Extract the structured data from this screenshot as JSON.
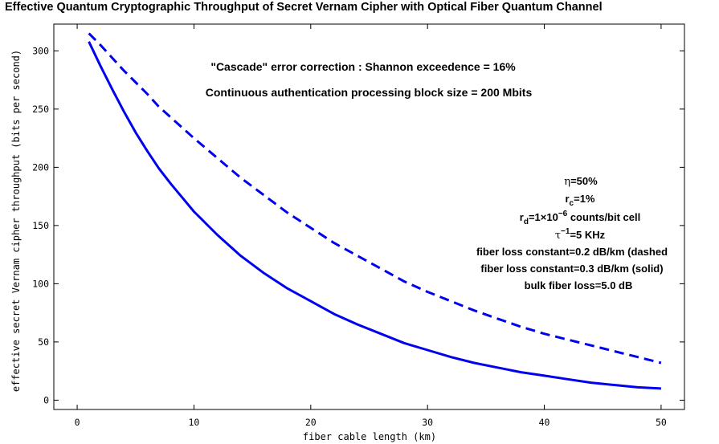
{
  "chart_data": {
    "type": "line",
    "title": "Effective Quantum Cryptographic Throughput of Secret Vernam Cipher with Optical Fiber Quantum Channel",
    "xlabel": "fiber cable length (km)",
    "ylabel": "effective secret Vernam cipher throughput (bits per second)",
    "xlim": [
      -2,
      52
    ],
    "ylim": [
      -8,
      323
    ],
    "x_ticks": [
      0,
      10,
      20,
      30,
      40,
      50
    ],
    "y_ticks": [
      0,
      50,
      100,
      150,
      200,
      250,
      300
    ],
    "grid": false,
    "series": [
      {
        "style": "dashed",
        "color": "#0000ee",
        "x": [
          1,
          2,
          3,
          4,
          5,
          6,
          7,
          8,
          9,
          10,
          12,
          14,
          16,
          18,
          20,
          22,
          24,
          26,
          28,
          30,
          32,
          34,
          36,
          38,
          40,
          42,
          44,
          46,
          48,
          50
        ],
        "y": [
          315,
          305,
          294,
          283,
          273,
          263,
          252,
          243,
          234,
          225,
          208,
          191,
          176,
          161,
          148,
          135,
          124,
          113,
          102,
          93,
          85,
          77,
          70,
          63,
          57,
          52,
          47,
          42,
          37,
          32
        ]
      },
      {
        "style": "solid",
        "color": "#0000ee",
        "x": [
          1,
          2,
          3,
          4,
          5,
          6,
          7,
          8,
          9,
          10,
          12,
          14,
          16,
          18,
          20,
          22,
          24,
          26,
          28,
          30,
          32,
          34,
          36,
          38,
          40,
          42,
          44,
          46,
          48,
          50
        ],
        "y": [
          308,
          287,
          267,
          248,
          230,
          214,
          199,
          186,
          174,
          162,
          142,
          124,
          109,
          96,
          85,
          74,
          65,
          57,
          49,
          43,
          37,
          32,
          28,
          24,
          21,
          18,
          15,
          13,
          11,
          10
        ]
      }
    ],
    "annotations": [
      "\"Cascade\" error correction : Shannon exceedence = 16%",
      "Continuous authentication processing block size = 200 Mbits"
    ],
    "parameters": {
      "eta": {
        "sym": "η",
        "text": "=50%"
      },
      "rc": {
        "sym": "r",
        "sub": "c",
        "text": "=1%"
      },
      "rd": {
        "sym": "r",
        "sub": "d",
        "pre": "=1×10",
        "sup": "−6",
        "post": " counts/bit cell"
      },
      "tau": {
        "sym": "τ",
        "sup": "−1",
        "text": "=5 KHz"
      },
      "loss_dashed": "fiber loss constant=0.2 dB/km (dashed",
      "loss_solid": "fiber loss constant=0.3 dB/km (solid)",
      "bulk": "bulk fiber loss=5.0 dB"
    }
  }
}
